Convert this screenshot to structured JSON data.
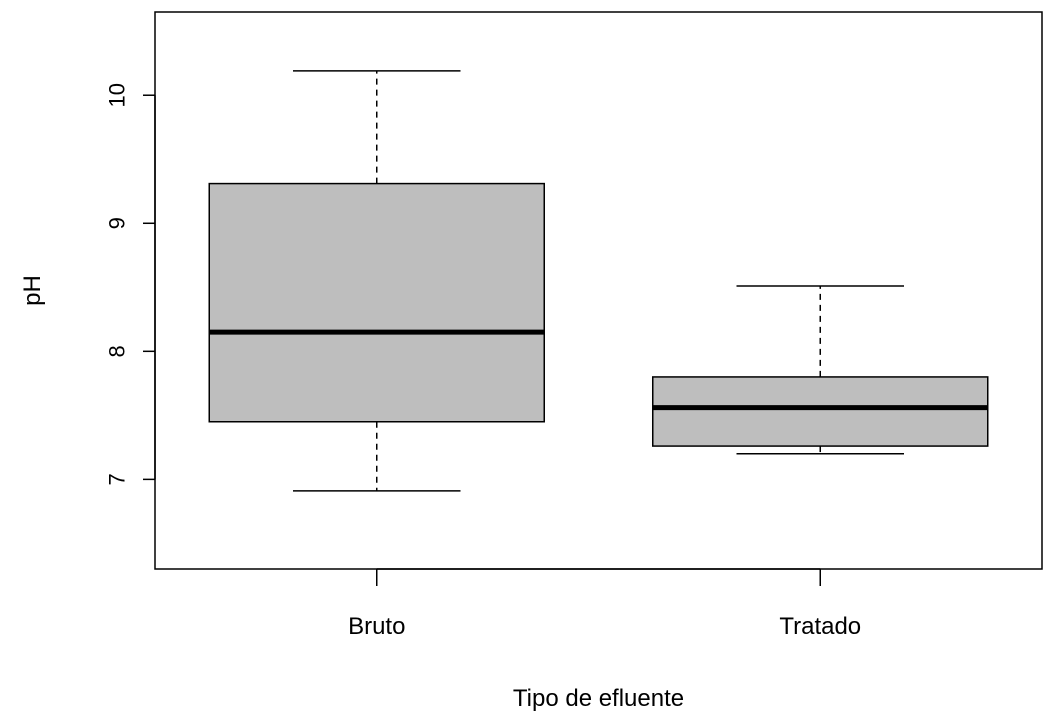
{
  "chart_data": {
    "type": "boxplot",
    "title": "",
    "xlabel": "Tipo de efluente",
    "ylabel": "pH",
    "ylim": [
      6.3,
      10.65
    ],
    "yticks": [
      7,
      8,
      9,
      10
    ],
    "grid": false,
    "legend": "none",
    "box_fill": "#bebebe",
    "categories": [
      "Bruto",
      "Tratado"
    ],
    "boxes": [
      {
        "category": "Bruto",
        "whisker_low": 6.91,
        "q1": 7.45,
        "median": 8.15,
        "q3": 9.31,
        "whisker_high": 10.19
      },
      {
        "category": "Tratado",
        "whisker_low": 7.2,
        "q1": 7.26,
        "median": 7.56,
        "q3": 7.8,
        "whisker_high": 8.51
      }
    ]
  }
}
